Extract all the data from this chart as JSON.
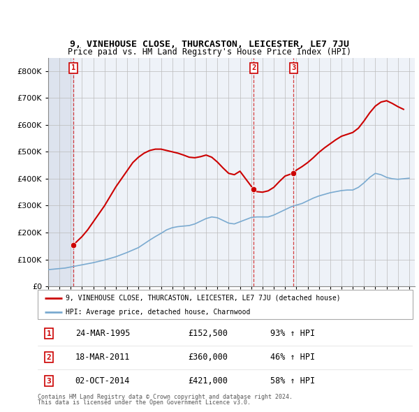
{
  "title": "9, VINEHOUSE CLOSE, THURCASTON, LEICESTER, LE7 7JU",
  "subtitle": "Price paid vs. HM Land Registry's House Price Index (HPI)",
  "legend_line1": "9, VINEHOUSE CLOSE, THURCASTON, LEICESTER, LE7 7JU (detached house)",
  "legend_line2": "HPI: Average price, detached house, Charnwood",
  "footer_line1": "Contains HM Land Registry data © Crown copyright and database right 2024.",
  "footer_line2": "This data is licensed under the Open Government Licence v3.0.",
  "transactions": [
    {
      "num": 1,
      "date": "24-MAR-1995",
      "price": 152500,
      "pct": "93%",
      "dir": "↑",
      "year": 1995.22
    },
    {
      "num": 2,
      "date": "18-MAR-2011",
      "price": 360000,
      "pct": "46%",
      "dir": "↑",
      "year": 2011.22
    },
    {
      "num": 3,
      "date": "02-OCT-2014",
      "price": 421000,
      "pct": "58%",
      "dir": "↑",
      "year": 2014.75
    }
  ],
  "price_color": "#cc0000",
  "hpi_color": "#7aaad0",
  "grid_color": "#cccccc",
  "ylim": [
    0,
    850000
  ],
  "xlim_start": 1993,
  "xlim_end": 2025.5,
  "hpi_data": {
    "years": [
      1993.0,
      1993.5,
      1994.0,
      1994.5,
      1995.0,
      1995.5,
      1996.0,
      1996.5,
      1997.0,
      1997.5,
      1998.0,
      1998.5,
      1999.0,
      1999.5,
      2000.0,
      2000.5,
      2001.0,
      2001.5,
      2002.0,
      2002.5,
      2003.0,
      2003.5,
      2004.0,
      2004.5,
      2005.0,
      2005.5,
      2006.0,
      2006.5,
      2007.0,
      2007.5,
      2008.0,
      2008.5,
      2009.0,
      2009.5,
      2010.0,
      2010.5,
      2011.0,
      2011.5,
      2012.0,
      2012.5,
      2013.0,
      2013.5,
      2014.0,
      2014.5,
      2015.0,
      2015.5,
      2016.0,
      2016.5,
      2017.0,
      2017.5,
      2018.0,
      2018.5,
      2019.0,
      2019.5,
      2020.0,
      2020.5,
      2021.0,
      2021.5,
      2022.0,
      2022.5,
      2023.0,
      2023.5,
      2024.0,
      2024.5,
      2025.0
    ],
    "values": [
      62000,
      64000,
      66000,
      68000,
      72000,
      76000,
      80000,
      84000,
      88000,
      93000,
      98000,
      104000,
      110000,
      118000,
      126000,
      135000,
      144000,
      158000,
      172000,
      185000,
      197000,
      210000,
      218000,
      222000,
      224000,
      226000,
      232000,
      242000,
      252000,
      258000,
      255000,
      245000,
      235000,
      232000,
      240000,
      248000,
      256000,
      258000,
      258000,
      258000,
      265000,
      275000,
      285000,
      295000,
      302000,
      308000,
      318000,
      328000,
      336000,
      342000,
      348000,
      352000,
      356000,
      358000,
      358000,
      368000,
      385000,
      405000,
      420000,
      415000,
      405000,
      400000,
      398000,
      400000,
      402000
    ]
  },
  "price_data": {
    "years": [
      1995.22,
      1995.5,
      1996.0,
      1996.5,
      1997.0,
      1997.5,
      1998.0,
      1998.5,
      1999.0,
      1999.5,
      2000.0,
      2000.5,
      2001.0,
      2001.5,
      2002.0,
      2002.5,
      2003.0,
      2003.5,
      2004.0,
      2004.5,
      2005.0,
      2005.5,
      2006.0,
      2006.5,
      2007.0,
      2007.5,
      2008.0,
      2008.5,
      2009.0,
      2009.5,
      2010.0,
      2010.5,
      2011.22,
      2011.5,
      2012.0,
      2012.5,
      2013.0,
      2013.5,
      2014.0,
      2014.75,
      2015.0,
      2015.5,
      2016.0,
      2016.5,
      2017.0,
      2017.5,
      2018.0,
      2018.5,
      2019.0,
      2019.5,
      2020.0,
      2020.5,
      2021.0,
      2021.5,
      2022.0,
      2022.5,
      2023.0,
      2023.5,
      2024.0,
      2024.5
    ],
    "values": [
      152500,
      165000,
      185000,
      210000,
      240000,
      270000,
      300000,
      335000,
      370000,
      400000,
      430000,
      460000,
      480000,
      495000,
      505000,
      510000,
      510000,
      505000,
      500000,
      495000,
      488000,
      480000,
      478000,
      482000,
      488000,
      480000,
      462000,
      440000,
      420000,
      415000,
      428000,
      400000,
      360000,
      352000,
      350000,
      355000,
      368000,
      390000,
      410000,
      421000,
      432000,
      445000,
      460000,
      478000,
      498000,
      515000,
      530000,
      545000,
      558000,
      565000,
      572000,
      588000,
      615000,
      645000,
      670000,
      685000,
      690000,
      680000,
      668000,
      658000
    ]
  }
}
